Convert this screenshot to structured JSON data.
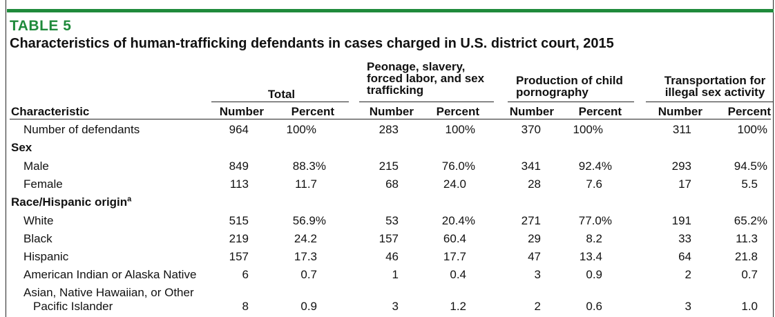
{
  "table_label": "TABLE 5",
  "title": "Characteristics of human-trafficking defendants in cases charged in U.S. district court, 2015",
  "groups": [
    {
      "lines": [
        "Total"
      ]
    },
    {
      "lines": [
        "Peonage, slavery,",
        "forced labor, and sex",
        "trafficking"
      ]
    },
    {
      "lines": [
        "Production of child",
        "pornography"
      ]
    },
    {
      "lines": [
        "Transportation for",
        "illegal sex activity"
      ]
    }
  ],
  "col_header_characteristic": "Characteristic",
  "col_number": "Number",
  "col_percent": "Percent",
  "rows": [
    {
      "label": "Number of defendants",
      "values": [
        "964",
        "100%",
        "283",
        "100%",
        "370",
        "100%",
        "311",
        "100%"
      ]
    },
    {
      "label": "Sex",
      "values": []
    },
    {
      "label": "Male",
      "values": [
        "849",
        "88.3%",
        "215",
        "76.0%",
        "341",
        "92.4%",
        "293",
        "94.5%"
      ]
    },
    {
      "label": "Female",
      "values": [
        "113",
        "11.7",
        "68",
        "24.0",
        "28",
        "7.6",
        "17",
        "5.5"
      ]
    },
    {
      "label": "Race/Hispanic origin",
      "sup": "a",
      "values": []
    },
    {
      "label": "White",
      "values": [
        "515",
        "56.9%",
        "53",
        "20.4%",
        "271",
        "77.0%",
        "191",
        "65.2%"
      ]
    },
    {
      "label": "Black",
      "values": [
        "219",
        "24.2",
        "157",
        "60.4",
        "29",
        "8.2",
        "33",
        "11.3"
      ]
    },
    {
      "label": "Hispanic",
      "values": [
        "157",
        "17.3",
        "46",
        "17.7",
        "47",
        "13.4",
        "64",
        "21.8"
      ]
    },
    {
      "label": "American Indian or Alaska Native",
      "values": [
        "6",
        "0.7",
        "1",
        "0.4",
        "3",
        "0.9",
        "2",
        "0.7"
      ]
    },
    {
      "label": "Asian, Native Hawaiian, or Other",
      "label2": "Pacific Islander",
      "values": [
        "8",
        "0.9",
        "3",
        "1.2",
        "2",
        "0.6",
        "3",
        "1.0"
      ]
    }
  ],
  "colors": {
    "accent": "#1f8a3b"
  }
}
